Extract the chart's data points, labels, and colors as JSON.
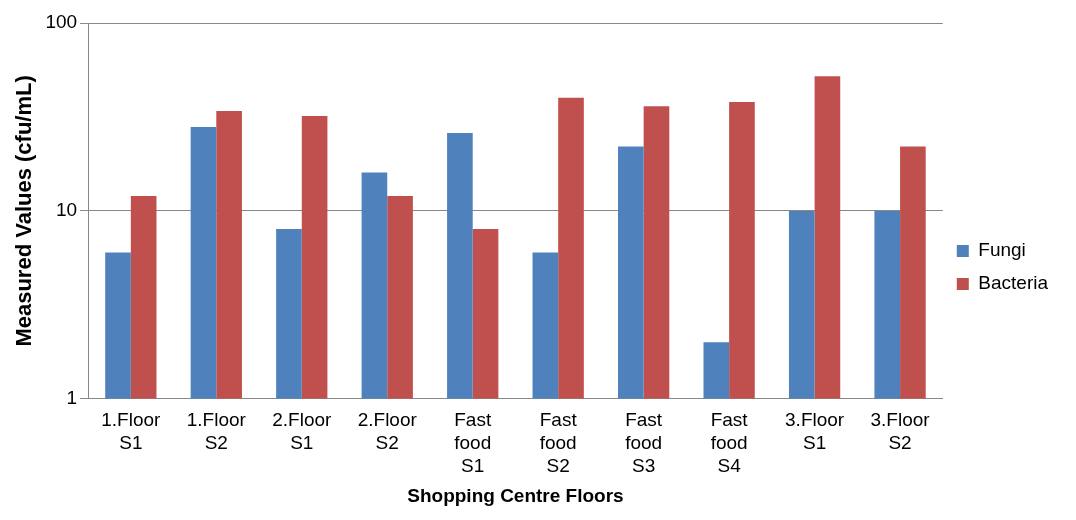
{
  "chart_data": {
    "type": "bar",
    "xlabel": "Shopping Centre Floors",
    "ylabel": "Measured Values (cfu/mL)",
    "categories": [
      "1.Floor S1",
      "1.Floor S2",
      "2.Floor S1",
      "2.Floor S2",
      "Fast food S1",
      "Fast food S2",
      "Fast food S3",
      "Fast food S4",
      "3.Floor S1",
      "3.Floor S2"
    ],
    "series": [
      {
        "name": "Fungi",
        "color": "#4f81bd",
        "values": [
          6,
          28,
          8,
          16,
          26,
          6,
          22,
          2,
          10,
          10
        ]
      },
      {
        "name": "Bacteria",
        "color": "#c0504d",
        "values": [
          12,
          34,
          32,
          12,
          8,
          40,
          36,
          38,
          52,
          22
        ]
      }
    ],
    "log": true,
    "ylim": [
      1,
      100
    ],
    "yticks": [
      1,
      10,
      100
    ],
    "grid": "y",
    "legend": "right"
  }
}
